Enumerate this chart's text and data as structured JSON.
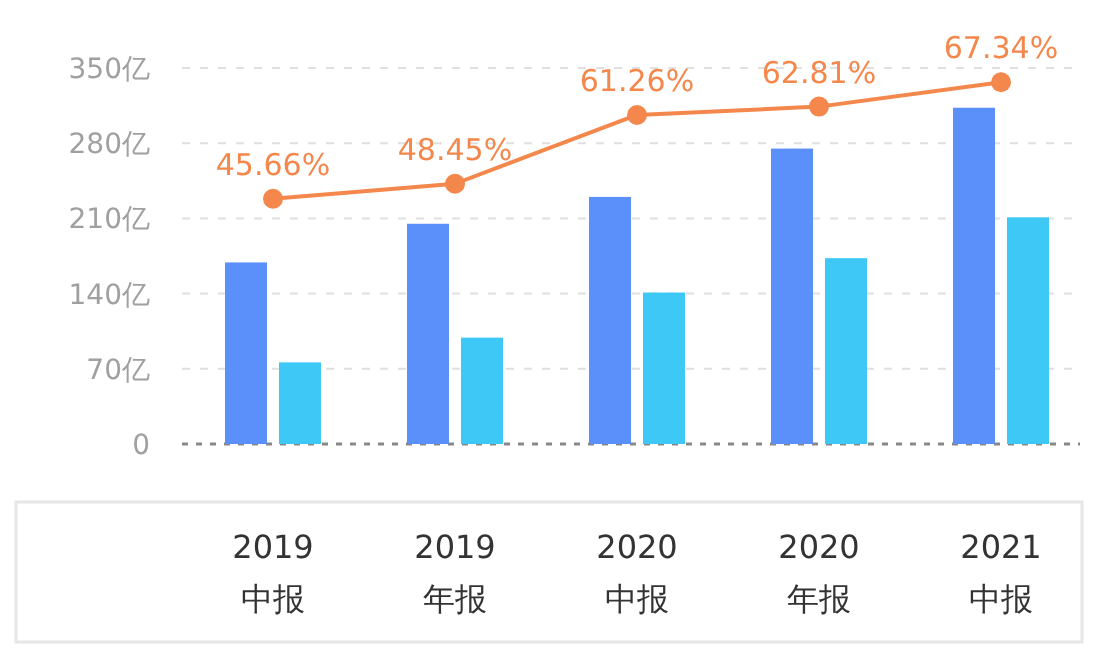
{
  "chart_data": {
    "type": "bar",
    "categories": [
      "2019\n中报",
      "2019\n年报",
      "2020\n中报",
      "2020\n年报",
      "2021\n中报"
    ],
    "series": [
      {
        "color": "#5b8ff9",
        "values": [
          169,
          205,
          230,
          275,
          313
        ]
      },
      {
        "color": "#3ec8f5",
        "values": [
          76,
          99,
          141,
          173,
          211
        ]
      },
      {
        "type": "line",
        "axis": "y2",
        "color": "#f4874b",
        "marker": "circle",
        "values": [
          45.66,
          48.45,
          61.26,
          62.81,
          67.34
        ],
        "value_labels": [
          "45.66%",
          "48.45%",
          "61.26%",
          "62.81%",
          "67.34%"
        ]
      }
    ],
    "ylim": [
      0,
      350
    ],
    "yticks": [
      0,
      {
        "value": 70,
        "label": "70亿"
      },
      {
        "value": 140,
        "label": "140亿"
      },
      {
        "value": 210,
        "label": "210亿"
      },
      {
        "value": 280,
        "label": "280亿"
      },
      {
        "value": 350,
        "label": "350亿"
      }
    ],
    "y2lim": [
      0,
      70
    ],
    "grid": "y"
  }
}
